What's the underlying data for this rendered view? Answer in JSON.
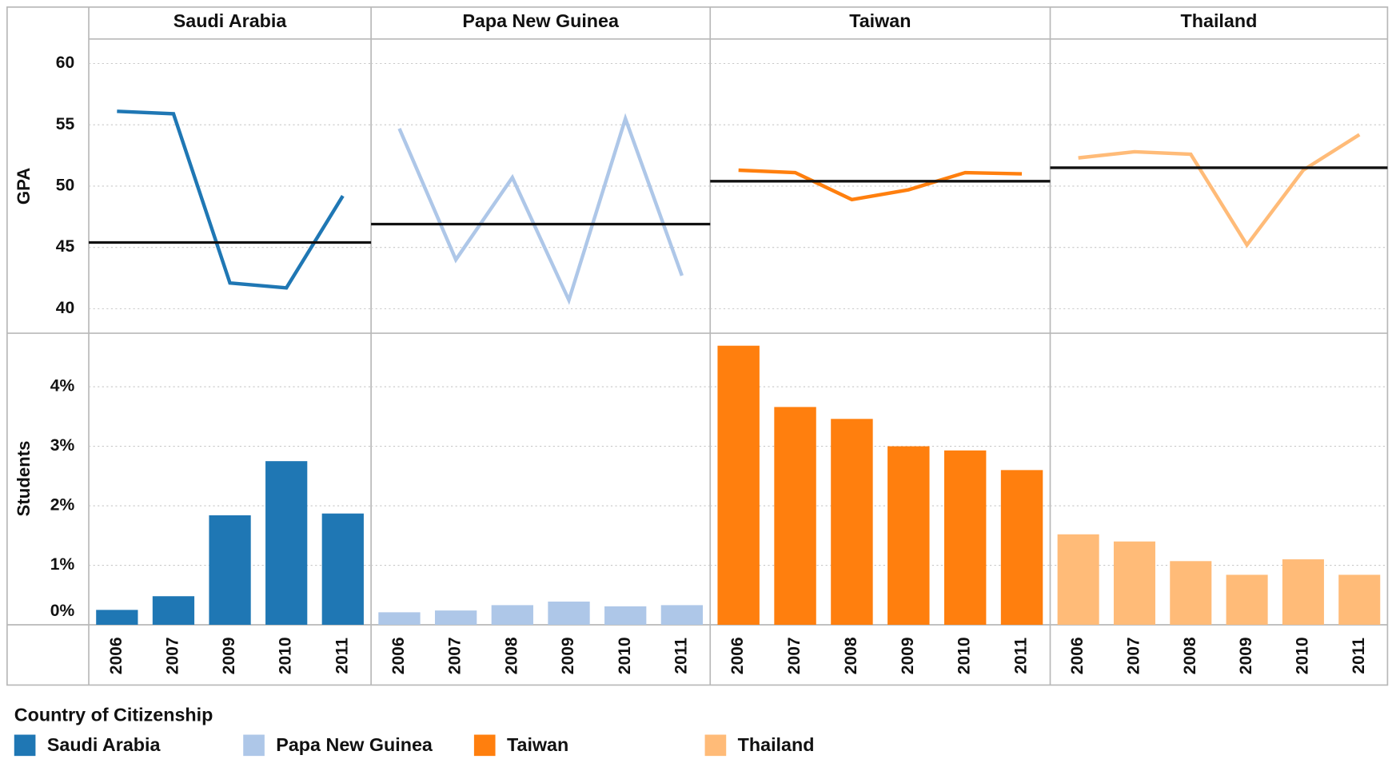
{
  "legend_title": "Country of Citizenship",
  "chart_data": [
    {
      "type": "line",
      "title": "Saudi Arabia",
      "ylabel": "GPA",
      "categories": [
        "2006",
        "2007",
        "2009",
        "2010",
        "2011"
      ],
      "series": [
        {
          "name": "Saudi Arabia",
          "color": "#1f77b4",
          "values": [
            56.1,
            55.9,
            42.1,
            41.7,
            49.2
          ]
        }
      ],
      "reference_line": 45.4,
      "ylim": [
        38,
        62
      ],
      "yticks": [
        40,
        45,
        50,
        55,
        60
      ],
      "grid": true
    },
    {
      "type": "bar",
      "ylabel": "Students",
      "categories": [
        "2006",
        "2007",
        "2009",
        "2010",
        "2011"
      ],
      "series": [
        {
          "name": "Saudi Arabia",
          "color": "#1f77b4",
          "values": [
            0.25,
            0.48,
            1.84,
            2.75,
            1.87
          ]
        }
      ],
      "ylim": [
        0,
        4.9
      ],
      "yticks": [
        {
          "value": 0,
          "label": "0%"
        },
        {
          "value": 1,
          "label": "1%"
        },
        {
          "value": 2,
          "label": "2%"
        },
        {
          "value": 3,
          "label": "3%"
        },
        {
          "value": 4,
          "label": "4%"
        }
      ],
      "grid": true
    },
    {
      "type": "line",
      "title": "Papa New Guinea",
      "categories": [
        "2006",
        "2007",
        "2008",
        "2009",
        "2010",
        "2011"
      ],
      "series": [
        {
          "name": "Papa New Guinea",
          "color": "#aec7e8",
          "values": [
            54.7,
            44.0,
            50.7,
            40.7,
            55.5,
            42.7
          ]
        }
      ],
      "reference_line": 46.9,
      "ylim": [
        38,
        62
      ],
      "yticks": [
        40,
        45,
        50,
        55,
        60
      ],
      "grid": true
    },
    {
      "type": "bar",
      "categories": [
        "2006",
        "2007",
        "2008",
        "2009",
        "2010",
        "2011"
      ],
      "series": [
        {
          "name": "Papa New Guinea",
          "color": "#aec7e8",
          "values": [
            0.21,
            0.24,
            0.33,
            0.39,
            0.31,
            0.33
          ]
        }
      ],
      "ylim": [
        0,
        4.9
      ],
      "yticks": [
        0,
        1,
        2,
        3,
        4
      ],
      "grid": true
    },
    {
      "type": "line",
      "title": "Taiwan",
      "categories": [
        "2006",
        "2007",
        "2008",
        "2009",
        "2010",
        "2011"
      ],
      "series": [
        {
          "name": "Taiwan",
          "color": "#ff7f0e",
          "values": [
            51.3,
            51.1,
            48.9,
            49.7,
            51.1,
            51.0
          ]
        }
      ],
      "reference_line": 50.4,
      "ylim": [
        38,
        62
      ],
      "yticks": [
        40,
        45,
        50,
        55,
        60
      ],
      "grid": true
    },
    {
      "type": "bar",
      "categories": [
        "2006",
        "2007",
        "2008",
        "2009",
        "2010",
        "2011"
      ],
      "series": [
        {
          "name": "Taiwan",
          "color": "#ff7f0e",
          "values": [
            4.69,
            3.66,
            3.46,
            3.0,
            2.93,
            2.6
          ]
        }
      ],
      "ylim": [
        0,
        4.9
      ],
      "yticks": [
        0,
        1,
        2,
        3,
        4
      ],
      "grid": true
    },
    {
      "type": "line",
      "title": "Thailand",
      "categories": [
        "2006",
        "2007",
        "2008",
        "2009",
        "2010",
        "2011"
      ],
      "series": [
        {
          "name": "Thailand",
          "color": "#ffbb78",
          "values": [
            52.3,
            52.8,
            52.6,
            45.2,
            51.3,
            54.2
          ]
        }
      ],
      "reference_line": 51.5,
      "ylim": [
        38,
        62
      ],
      "yticks": [
        40,
        45,
        50,
        55,
        60
      ],
      "grid": true
    },
    {
      "type": "bar",
      "categories": [
        "2006",
        "2007",
        "2008",
        "2009",
        "2010",
        "2011"
      ],
      "series": [
        {
          "name": "Thailand",
          "color": "#ffbb78",
          "values": [
            1.52,
            1.4,
            1.07,
            0.84,
            1.1,
            0.84
          ]
        }
      ],
      "ylim": [
        0,
        4.9
      ],
      "yticks": [
        0,
        1,
        2,
        3,
        4
      ],
      "grid": true
    }
  ]
}
